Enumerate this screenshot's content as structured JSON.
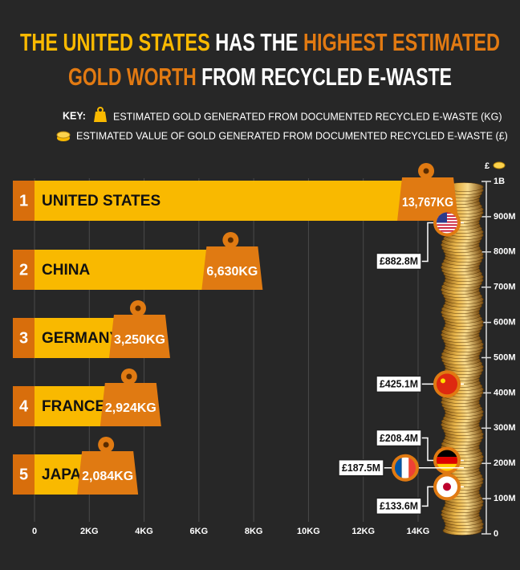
{
  "chart_data": {
    "type": "bar",
    "title_lines": [
      [
        {
          "text": "THE UNITED STATES",
          "color": "#f9b900"
        },
        {
          "text": " HAS THE ",
          "color": "#ffffff"
        },
        {
          "text": "HIGHEST ESTIMATED",
          "color": "#e27a12"
        }
      ],
      [
        {
          "text": "GOLD WORTH",
          "color": "#e27a12"
        },
        {
          "text": " FROM RECYCLED E-WASTE",
          "color": "#ffffff"
        }
      ]
    ],
    "key_label": "KEY:",
    "ranks": [
      "1",
      "2",
      "3",
      "4",
      "5"
    ],
    "categories": [
      "UNITED STATES",
      "CHINA",
      "GERMANY",
      "FRANCE",
      "JAPAN"
    ],
    "series": [
      {
        "name": "ESTIMATED GOLD GENERATED FROM DOCUMENTED RECYCLED E-WASTE (KG)",
        "color": "#f9b900",
        "values": [
          13.767,
          6.63,
          3.25,
          2.924,
          2.084
        ],
        "value_labels": [
          "13,767KG",
          "6,630KG",
          "3,250KG",
          "2,924KG",
          "2,084KG"
        ]
      },
      {
        "name": "ESTIMATED VALUE OF GOLD GENERATED FROM DOCUMENTED RECYCLED E-WASTE (£)",
        "color": "#e27a12",
        "axis": "y2",
        "values": [
          882.8,
          425.1,
          208.4,
          187.5,
          133.6
        ],
        "value_labels": [
          "£882.8M",
          "£425.1M",
          "£208.4M",
          "£187.5M",
          "£133.6M"
        ]
      }
    ],
    "xlim": [
      0,
      14
    ],
    "xticks": [
      0,
      {
        "value": 2,
        "label": "2KG"
      },
      {
        "value": 4,
        "label": "4KG"
      },
      {
        "value": 6,
        "label": "6KG"
      },
      {
        "value": 8,
        "label": "8KG"
      },
      {
        "value": 10,
        "label": "10KG"
      },
      {
        "value": 12,
        "label": "12KG"
      },
      {
        "value": 14,
        "label": "14KG"
      }
    ],
    "y2label": "£",
    "y2lim": [
      0,
      1000
    ],
    "y2ticks": [
      0,
      {
        "value": 100,
        "label": "100M"
      },
      {
        "value": 200,
        "label": "200M"
      },
      {
        "value": 300,
        "label": "300M"
      },
      {
        "value": 400,
        "label": "400M"
      },
      {
        "value": 500,
        "label": "500M"
      },
      {
        "value": 600,
        "label": "600M"
      },
      {
        "value": 700,
        "label": "700M"
      },
      {
        "value": 800,
        "label": "800M"
      },
      {
        "value": 900,
        "label": "900M"
      },
      {
        "value": 1000,
        "label": "1B"
      }
    ],
    "grid": true,
    "rank_color": "#d86e0c",
    "label_box_color": "#e07a12"
  }
}
